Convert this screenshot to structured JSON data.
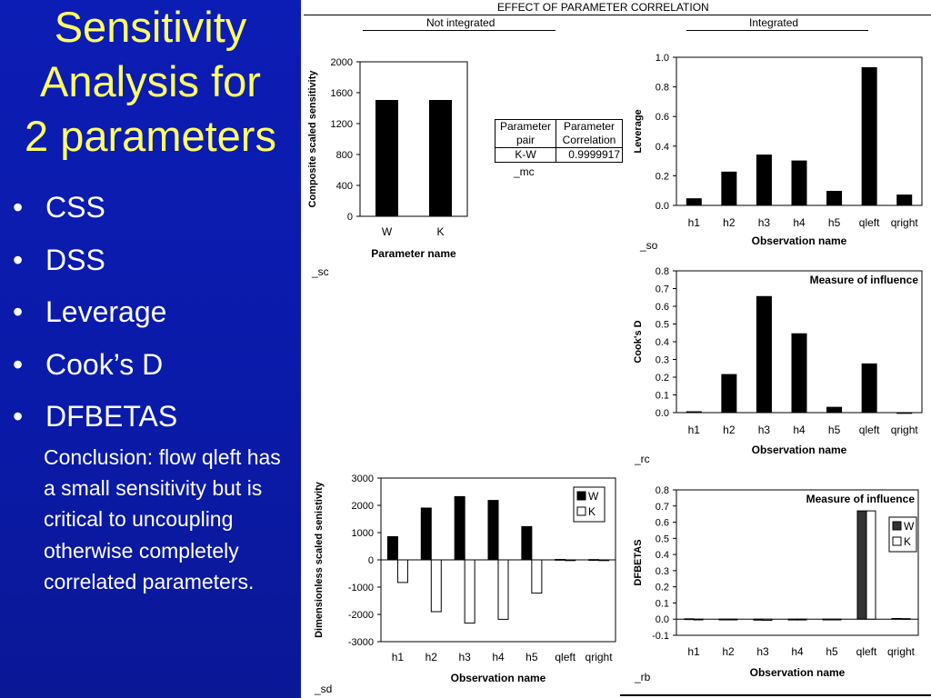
{
  "slide": {
    "title_lines": [
      "Sensitivity",
      "Analysis for",
      "2 parameters"
    ],
    "bullets": [
      "CSS",
      "DSS",
      "Leverage",
      "Cook’s D",
      "DFBETAS"
    ],
    "bullet_marker": "•",
    "conclusion": "Conclusion: flow qleft has a small sensitivity but is critical to uncoupling otherwise completely correlated parameters.",
    "colors": {
      "background": "#0c1db5",
      "title": "#ffff66",
      "text": "#ffffff"
    }
  },
  "sheet": {
    "main_title": "EFFECT OF PARAMETER CORRELATION",
    "left_header": "Not integrated",
    "right_header": "Integrated",
    "tags": {
      "sc": "_sc",
      "so": "_so",
      "mc": "_mc",
      "rc": "_rc",
      "sd": "_sd",
      "rb": "_rb"
    },
    "param_table": {
      "headers": [
        "Parameter pair",
        "Parameter Correlation"
      ],
      "rows": [
        [
          "K-W",
          "0.9999917"
        ]
      ]
    }
  },
  "chart_data": [
    {
      "id": "css",
      "type": "bar",
      "title": "",
      "xlabel": "Parameter name",
      "ylabel": "Composite scaled sensitivity",
      "categories": [
        "W",
        "K"
      ],
      "values": [
        1500,
        1500
      ],
      "ylim": [
        0,
        2000
      ],
      "yticks": [
        "0",
        "400",
        "800",
        "1200",
        "1600",
        "2000"
      ],
      "grid": false,
      "colors": [
        "#000000"
      ]
    },
    {
      "id": "leverage",
      "type": "bar",
      "title": "",
      "xlabel": "Observation name",
      "ylabel": "Leverage",
      "categories": [
        "h1",
        "h2",
        "h3",
        "h4",
        "h5",
        "qleft",
        "qright"
      ],
      "values": [
        0.045,
        0.225,
        0.34,
        0.3,
        0.095,
        0.93,
        0.07
      ],
      "ylim": [
        0,
        1.0
      ],
      "yticks": [
        "0.0",
        "0.2",
        "0.4",
        "0.6",
        "0.8",
        "1.0"
      ],
      "grid": false,
      "colors": [
        "#000000"
      ]
    },
    {
      "id": "cooks",
      "type": "bar",
      "title": "Measure of influence",
      "xlabel": "Observation name",
      "ylabel": "Cook's D",
      "categories": [
        "h1",
        "h2",
        "h3",
        "h4",
        "h5",
        "qleft",
        "qright"
      ],
      "values": [
        0.005,
        0.215,
        0.655,
        0.445,
        0.03,
        0.275,
        0
      ],
      "ylim": [
        0,
        0.8
      ],
      "yticks": [
        "0.0",
        "0.1",
        "0.2",
        "0.3",
        "0.4",
        "0.5",
        "0.6",
        "0.7",
        "0.8"
      ],
      "grid": false,
      "colors": [
        "#000000"
      ]
    },
    {
      "id": "dss",
      "type": "bar",
      "title": "",
      "xlabel": "Observation name",
      "ylabel": "Dimensionless scaled senistivity",
      "categories": [
        "h1",
        "h2",
        "h3",
        "h4",
        "h5",
        "qleft",
        "qright"
      ],
      "series": [
        {
          "name": "W",
          "values": [
            850,
            1900,
            2320,
            2180,
            1220,
            15,
            10
          ]
        },
        {
          "name": "K",
          "values": [
            -830,
            -1900,
            -2320,
            -2180,
            -1220,
            -15,
            -10
          ]
        }
      ],
      "ylim": [
        -3000,
        3000
      ],
      "yticks": [
        "-3000",
        "-2000",
        "-1000",
        "0",
        "1000",
        "2000",
        "3000"
      ],
      "legend": "top-right",
      "grid": false,
      "colors": [
        "#000000",
        "#ffffff"
      ]
    },
    {
      "id": "dfbetas",
      "type": "bar",
      "title": "Measure of influence",
      "xlabel": "Observation name",
      "ylabel": "DFBETAS",
      "categories": [
        "h1",
        "h2",
        "h3",
        "h4",
        "h5",
        "qleft",
        "qright"
      ],
      "series": [
        {
          "name": "W",
          "values": [
            0.002,
            -0.004,
            -0.006,
            -0.005,
            -0.003,
            0.67,
            0.004
          ]
        },
        {
          "name": "K",
          "values": [
            -0.002,
            -0.004,
            -0.007,
            -0.005,
            -0.003,
            0.67,
            0.003
          ]
        }
      ],
      "ylim": [
        -0.1,
        0.8
      ],
      "yticks": [
        "-0.1",
        "0.0",
        "0.1",
        "0.2",
        "0.3",
        "0.4",
        "0.5",
        "0.6",
        "0.7",
        "0.8"
      ],
      "legend": "right",
      "grid": false,
      "colors": [
        "#333333",
        "#ffffff"
      ]
    }
  ]
}
